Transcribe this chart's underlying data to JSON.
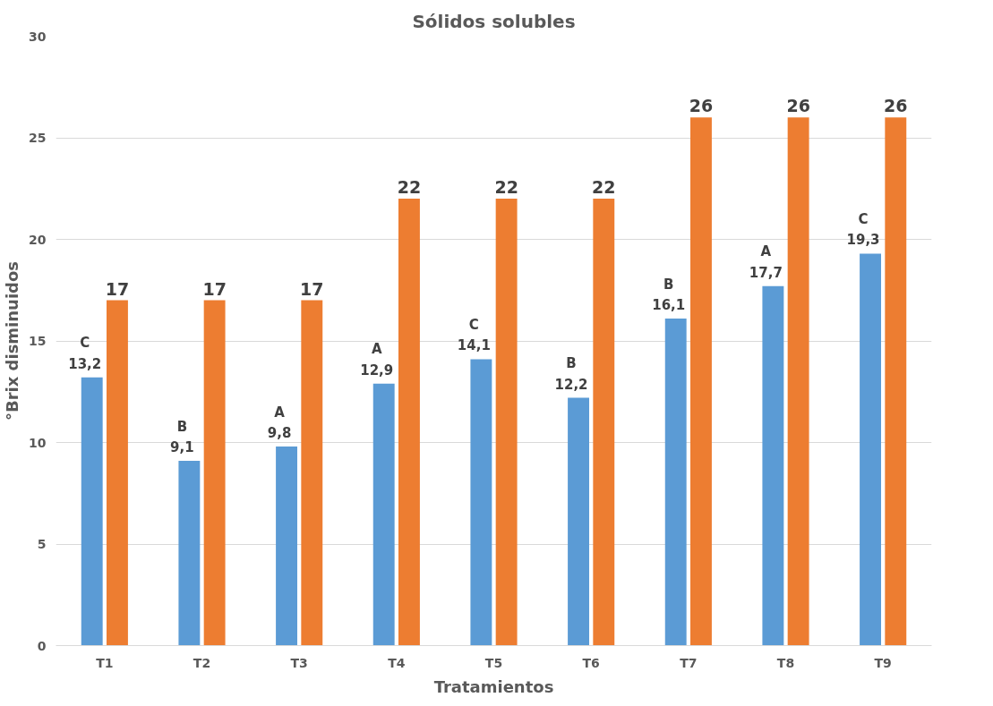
{
  "chart_data": {
    "type": "bar",
    "title": "Sólidos solubles",
    "xlabel": "Tratamientos",
    "ylabel": "°Brix disminuidos",
    "categories": [
      "T1",
      "T2",
      "T3",
      "T4",
      "T5",
      "T6",
      "T7",
      "T8",
      "T9"
    ],
    "series": [
      {
        "color": "#5b9bd5",
        "values": [
          13.2,
          9.1,
          9.8,
          12.9,
          14.1,
          12.2,
          16.1,
          17.7,
          19.3
        ],
        "value_labels": [
          "C\n13,2",
          "B\n9,1",
          "A\n9,8",
          "A\n12,9",
          "C\n14,1",
          "B\n12,2",
          "B\n16,1",
          "A\n17,7",
          "C\n19,3"
        ]
      },
      {
        "color": "#ed7d31",
        "values": [
          17,
          17,
          17,
          22,
          22,
          22,
          26,
          26,
          26
        ],
        "value_labels": [
          "17",
          "17",
          "17",
          "22",
          "22",
          "22",
          "26",
          "26",
          "26"
        ]
      }
    ],
    "ylim": [
      0,
      30
    ],
    "yticks": [
      0,
      5,
      10,
      15,
      20,
      25,
      30
    ],
    "grid": "y"
  }
}
